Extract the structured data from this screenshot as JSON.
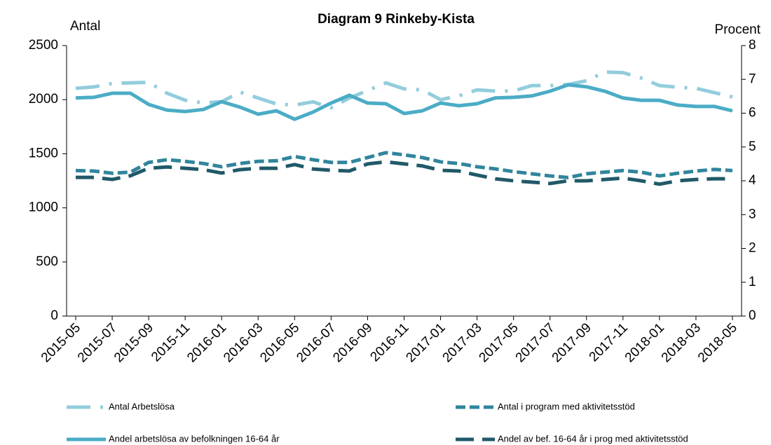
{
  "chart_data": {
    "type": "line",
    "title": "Diagram 9 Rinkeby-Kista",
    "y_label": "Antal",
    "y2_label": "Procent",
    "categories": [
      "2015-05",
      null,
      "2015-07",
      null,
      "2015-09",
      null,
      "2015-11",
      null,
      "2016-01",
      null,
      "2016-03",
      null,
      "2016-05",
      null,
      "2016-07",
      null,
      "2016-09",
      null,
      "2016-11",
      null,
      "2017-01",
      null,
      "2017-03",
      null,
      "2017-05",
      null,
      "2017-07",
      null,
      "2017-09",
      null,
      "2017-11",
      null,
      "2018-01",
      null,
      "2018-03",
      null,
      "2018-05"
    ],
    "ylim": [
      0,
      2500
    ],
    "yticks": [
      0,
      500,
      1000,
      1500,
      2000,
      2500
    ],
    "y2lim": [
      0,
      8
    ],
    "y2ticks": [
      0,
      1,
      2,
      3,
      4,
      5,
      6,
      7,
      8
    ],
    "series": [
      {
        "name": "Antal Arbetslösa",
        "color": "#93cddd",
        "line_style": "dash-dot",
        "values": [
          2105,
          2118,
          2150,
          2155,
          2160,
          2060,
          1995,
          1970,
          1980,
          2070,
          2015,
          1960,
          1950,
          1980,
          1925,
          2015,
          2085,
          2155,
          2100,
          2090,
          2000,
          2035,
          2090,
          2080,
          2080,
          2130,
          2130,
          2140,
          2175,
          2255,
          2250,
          2200,
          2130,
          2115,
          2105,
          2065,
          2025
        ]
      },
      {
        "name": "Antal i program med aktivitetsstöd",
        "color": "#31859c",
        "line_style": "dashed",
        "values": [
          1345,
          1340,
          1320,
          1330,
          1420,
          1445,
          1430,
          1410,
          1380,
          1410,
          1430,
          1435,
          1475,
          1445,
          1420,
          1420,
          1465,
          1510,
          1490,
          1465,
          1425,
          1410,
          1380,
          1360,
          1335,
          1315,
          1295,
          1280,
          1315,
          1330,
          1345,
          1330,
          1295,
          1320,
          1340,
          1355,
          1345
        ]
      },
      {
        "name": "Andel arbetslösa av befolkningen 16-64 år",
        "color": "#4bacc6",
        "line_style": "solid",
        "axis": "y2",
        "values": [
          6.45,
          6.47,
          6.59,
          6.59,
          6.26,
          6.09,
          6.05,
          6.11,
          6.34,
          6.18,
          5.97,
          6.07,
          5.82,
          6.03,
          6.3,
          6.53,
          6.3,
          6.28,
          5.99,
          6.07,
          6.3,
          6.22,
          6.28,
          6.45,
          6.47,
          6.51,
          6.65,
          6.84,
          6.78,
          6.65,
          6.45,
          6.38,
          6.38,
          6.24,
          6.2,
          6.2,
          6.07
        ]
      },
      {
        "name": "Andel av bef. 16-64 år i prog med aktivitetsstöd",
        "color": "#215968",
        "line_style": "long-dash",
        "axis": "y2",
        "values": [
          4.1,
          4.1,
          4.04,
          4.15,
          4.37,
          4.41,
          4.37,
          4.33,
          4.23,
          4.33,
          4.37,
          4.37,
          4.48,
          4.35,
          4.31,
          4.29,
          4.5,
          4.56,
          4.5,
          4.44,
          4.31,
          4.29,
          4.17,
          4.06,
          4.0,
          3.96,
          3.92,
          4.0,
          4.0,
          4.04,
          4.08,
          4.0,
          3.9,
          4.0,
          4.04,
          4.06,
          4.06
        ]
      }
    ]
  }
}
